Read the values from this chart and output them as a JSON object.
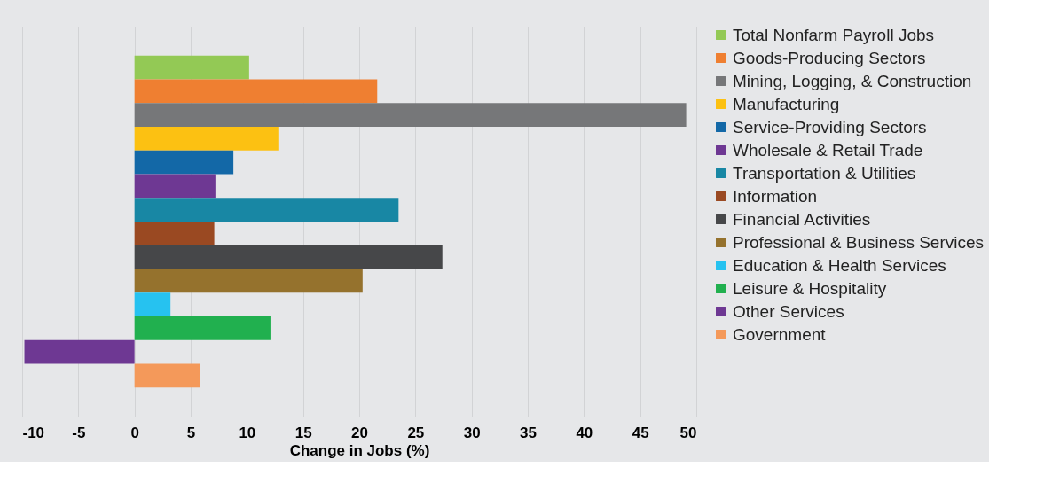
{
  "chart_data": {
    "type": "bar",
    "orientation": "horizontal",
    "xlabel": "Change in Jobs (%)",
    "categories": [
      null
    ],
    "series": [
      {
        "name": "Total Nonfarm Payroll Jobs",
        "color": "#93c955",
        "values": [
          10.2
        ]
      },
      {
        "name": "Goods-Producing Sectors",
        "color": "#ef7f31",
        "values": [
          21.6
        ]
      },
      {
        "name": "Mining, Logging, & Construction",
        "color": "#767779",
        "values": [
          49.1
        ]
      },
      {
        "name": "Manufacturing",
        "color": "#fcc112",
        "values": [
          12.8
        ]
      },
      {
        "name": "Service-Providing Sectors",
        "color": "#1368a7",
        "values": [
          8.8
        ]
      },
      {
        "name": "Wholesale & Retail Trade",
        "color": "#6e3893",
        "values": [
          7.2
        ]
      },
      {
        "name": "Transportation & Utilities",
        "color": "#1887a4",
        "values": [
          23.5
        ]
      },
      {
        "name": "Information",
        "color": "#9a4922",
        "values": [
          7.1
        ]
      },
      {
        "name": "Financial Activities",
        "color": "#464749",
        "values": [
          27.4
        ]
      },
      {
        "name": "Professional & Business Services",
        "color": "#95722d",
        "values": [
          20.3
        ]
      },
      {
        "name": "Education & Health Services",
        "color": "#26c2f0",
        "values": [
          3.2
        ]
      },
      {
        "name": "Leisure & Hospitality",
        "color": "#21b04f",
        "values": [
          12.1
        ]
      },
      {
        "name": "Other Services",
        "color": "#6e3893",
        "values": [
          -9.8
        ]
      },
      {
        "name": "Government",
        "color": "#f4995a",
        "values": [
          5.8
        ]
      }
    ],
    "xlim": [
      -10,
      50
    ],
    "xticks": [
      -10,
      -5,
      0,
      5,
      10,
      15,
      20,
      25,
      30,
      35,
      40,
      45,
      50
    ],
    "grid": "x",
    "legend": "right",
    "tick_labels": "x"
  }
}
